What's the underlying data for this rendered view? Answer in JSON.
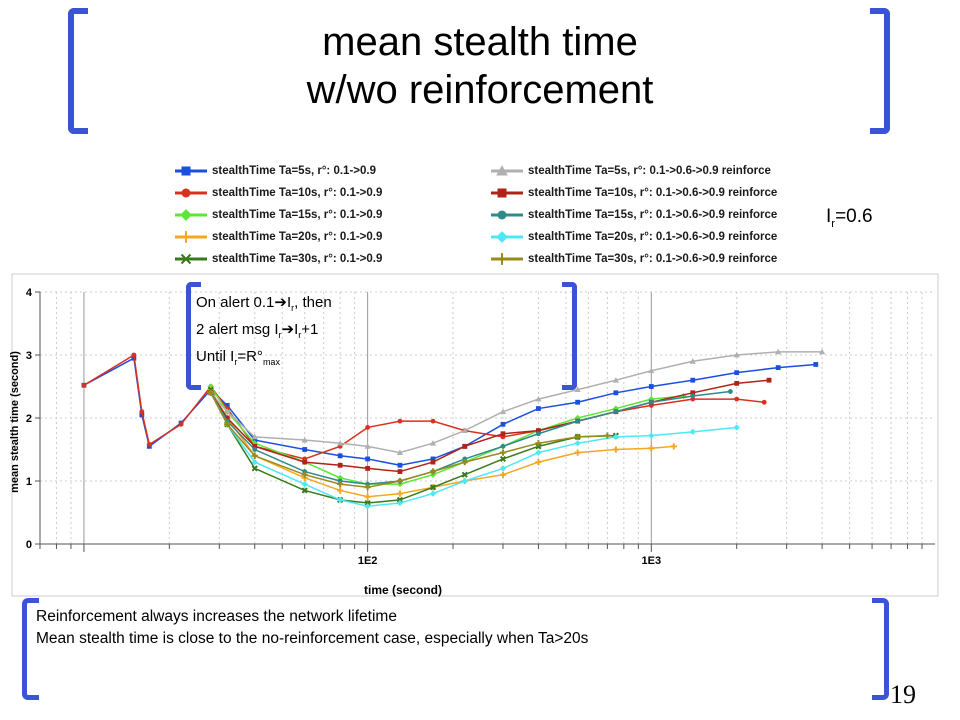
{
  "slide": {
    "title_line1": "mean stealth time",
    "title_line2": "w/wo reinforcement",
    "number": "19",
    "ir_prefix": "I",
    "ir_sub": "r",
    "ir_suffix": "=0.6",
    "alert": {
      "line1_a": "On alert 0.1",
      "line1_b": "I",
      "line1_sub": "r",
      "line1_c": ", then",
      "line2_a": "2 alert msg I",
      "line2_sub1": "r",
      "line2_b": "I",
      "line2_sub2": "r",
      "line2_c": "+1",
      "line3_a": "Until I",
      "line3_sub": "r",
      "line3_b": "=R°",
      "line3_sub2": "max"
    },
    "conclusion_line1": "Reinforcement always increases the network lifetime",
    "conclusion_line2": "Mean stealth time is close to the no-reinforcement case, especially when Ta>20s"
  },
  "chart_data": {
    "type": "line",
    "xlabel": "time (second)",
    "ylabel": "mean stealth time (second)",
    "x_scale": "log",
    "x_ticks": [
      "1E2",
      "1E3"
    ],
    "ylim": [
      0,
      4
    ],
    "y_ticks": [
      "0",
      "1",
      "2",
      "3",
      "4"
    ],
    "grid": true,
    "legend_position": "top",
    "series": [
      {
        "name": "stealthTime Ta=5s, r°: 0.1->0.9",
        "color": "#1a4fe0",
        "marker": "square",
        "x": [
          10,
          15,
          16,
          17,
          22,
          28,
          32,
          40,
          60,
          80,
          100,
          130,
          170,
          220,
          300,
          400,
          550,
          750,
          1000,
          1400,
          2000,
          2800,
          3800
        ],
        "y": [
          2.52,
          2.95,
          2.05,
          1.55,
          1.92,
          2.45,
          2.2,
          1.65,
          1.5,
          1.4,
          1.35,
          1.25,
          1.35,
          1.55,
          1.9,
          2.15,
          2.25,
          2.4,
          2.5,
          2.6,
          2.72,
          2.8,
          2.85
        ]
      },
      {
        "name": "stealthTime Ta=10s, r°: 0.1->0.9",
        "color": "#d9301f",
        "marker": "circle",
        "x": [
          10,
          15,
          16,
          17,
          22,
          28,
          32,
          40,
          60,
          80,
          100,
          130,
          170,
          220,
          300,
          400,
          550,
          750,
          1000,
          1400,
          2000,
          2500
        ],
        "y": [
          2.52,
          3.0,
          2.1,
          1.58,
          1.9,
          2.5,
          2.15,
          1.55,
          1.35,
          1.55,
          1.85,
          1.95,
          1.95,
          1.8,
          1.7,
          1.8,
          1.95,
          2.1,
          2.2,
          2.3,
          2.3,
          2.25
        ]
      },
      {
        "name": "stealthTime Ta=15s, r°: 0.1->0.9",
        "color": "#5ce63a",
        "marker": "diamond",
        "x": [
          28,
          32,
          40,
          60,
          80,
          100,
          130,
          170,
          220,
          300,
          400,
          550,
          750,
          1000,
          1300
        ],
        "y": [
          2.5,
          2.1,
          1.6,
          1.3,
          1.05,
          0.95,
          0.95,
          1.1,
          1.3,
          1.55,
          1.8,
          2.0,
          2.15,
          2.3,
          2.35
        ]
      },
      {
        "name": "stealthTime Ta=20s, r°: 0.1->0.9",
        "color": "#f5a623",
        "marker": "cross",
        "x": [
          28,
          32,
          40,
          60,
          80,
          100,
          130,
          170,
          220,
          300,
          400,
          550,
          750,
          1000,
          1200
        ],
        "y": [
          2.45,
          2.0,
          1.4,
          1.05,
          0.85,
          0.75,
          0.8,
          0.9,
          1.0,
          1.1,
          1.3,
          1.45,
          1.5,
          1.52,
          1.55
        ]
      },
      {
        "name": "stealthTime Ta=30s, r°: 0.1->0.9",
        "color": "#3a7a1c",
        "marker": "x",
        "x": [
          28,
          32,
          40,
          60,
          80,
          100,
          130,
          170,
          220,
          300,
          400,
          550,
          750
        ],
        "y": [
          2.45,
          1.9,
          1.2,
          0.85,
          0.7,
          0.65,
          0.7,
          0.9,
          1.1,
          1.35,
          1.55,
          1.7,
          1.72
        ]
      },
      {
        "name": "stealthTime Ta=5s, r°: 0.1->0.6->0.9 reinforce",
        "color": "#b0b0b0",
        "marker": "triangle",
        "x": [
          28,
          32,
          40,
          60,
          80,
          100,
          130,
          170,
          220,
          300,
          400,
          550,
          750,
          1000,
          1400,
          2000,
          2800,
          4000
        ],
        "y": [
          2.4,
          2.1,
          1.7,
          1.65,
          1.6,
          1.55,
          1.45,
          1.6,
          1.8,
          2.1,
          2.3,
          2.45,
          2.6,
          2.75,
          2.9,
          3.0,
          3.05,
          3.05
        ]
      },
      {
        "name": "stealthTime Ta=10s, r°: 0.1->0.6->0.9 reinforce",
        "color": "#b02418",
        "marker": "square",
        "x": [
          28,
          32,
          40,
          60,
          80,
          100,
          130,
          170,
          220,
          300,
          400,
          550,
          750,
          1000,
          1400,
          2000,
          2600
        ],
        "y": [
          2.4,
          2.0,
          1.55,
          1.3,
          1.25,
          1.2,
          1.15,
          1.3,
          1.55,
          1.75,
          1.8,
          1.95,
          2.1,
          2.25,
          2.4,
          2.55,
          2.6
        ]
      },
      {
        "name": "stealthTime Ta=15s, r°: 0.1->0.6->0.9 reinforce",
        "color": "#2f8a8a",
        "marker": "circle",
        "x": [
          28,
          32,
          40,
          60,
          80,
          100,
          130,
          170,
          220,
          300,
          400,
          550,
          750,
          1000,
          1400,
          1900
        ],
        "y": [
          2.4,
          1.95,
          1.5,
          1.15,
          1.0,
          0.95,
          1.0,
          1.15,
          1.35,
          1.55,
          1.75,
          1.95,
          2.1,
          2.25,
          2.35,
          2.42
        ]
      },
      {
        "name": "stealthTime Ta=20s, r°: 0.1->0.6->0.9 reinforce",
        "color": "#4de8f5",
        "marker": "diamond",
        "x": [
          28,
          32,
          40,
          60,
          80,
          100,
          130,
          170,
          220,
          300,
          400,
          550,
          750,
          1000,
          1400,
          2000
        ],
        "y": [
          2.4,
          1.9,
          1.3,
          0.95,
          0.7,
          0.6,
          0.65,
          0.8,
          1.0,
          1.2,
          1.45,
          1.6,
          1.7,
          1.72,
          1.78,
          1.85
        ]
      },
      {
        "name": "stealthTime Ta=30s, r°: 0.1->0.6->0.9 reinforce",
        "color": "#9a8a1c",
        "marker": "plus",
        "x": [
          28,
          32,
          40,
          60,
          80,
          100,
          130,
          170,
          220,
          300,
          400,
          550,
          700
        ],
        "y": [
          2.4,
          1.9,
          1.4,
          1.1,
          0.95,
          0.9,
          1.0,
          1.15,
          1.3,
          1.45,
          1.6,
          1.7,
          1.72
        ]
      }
    ]
  }
}
